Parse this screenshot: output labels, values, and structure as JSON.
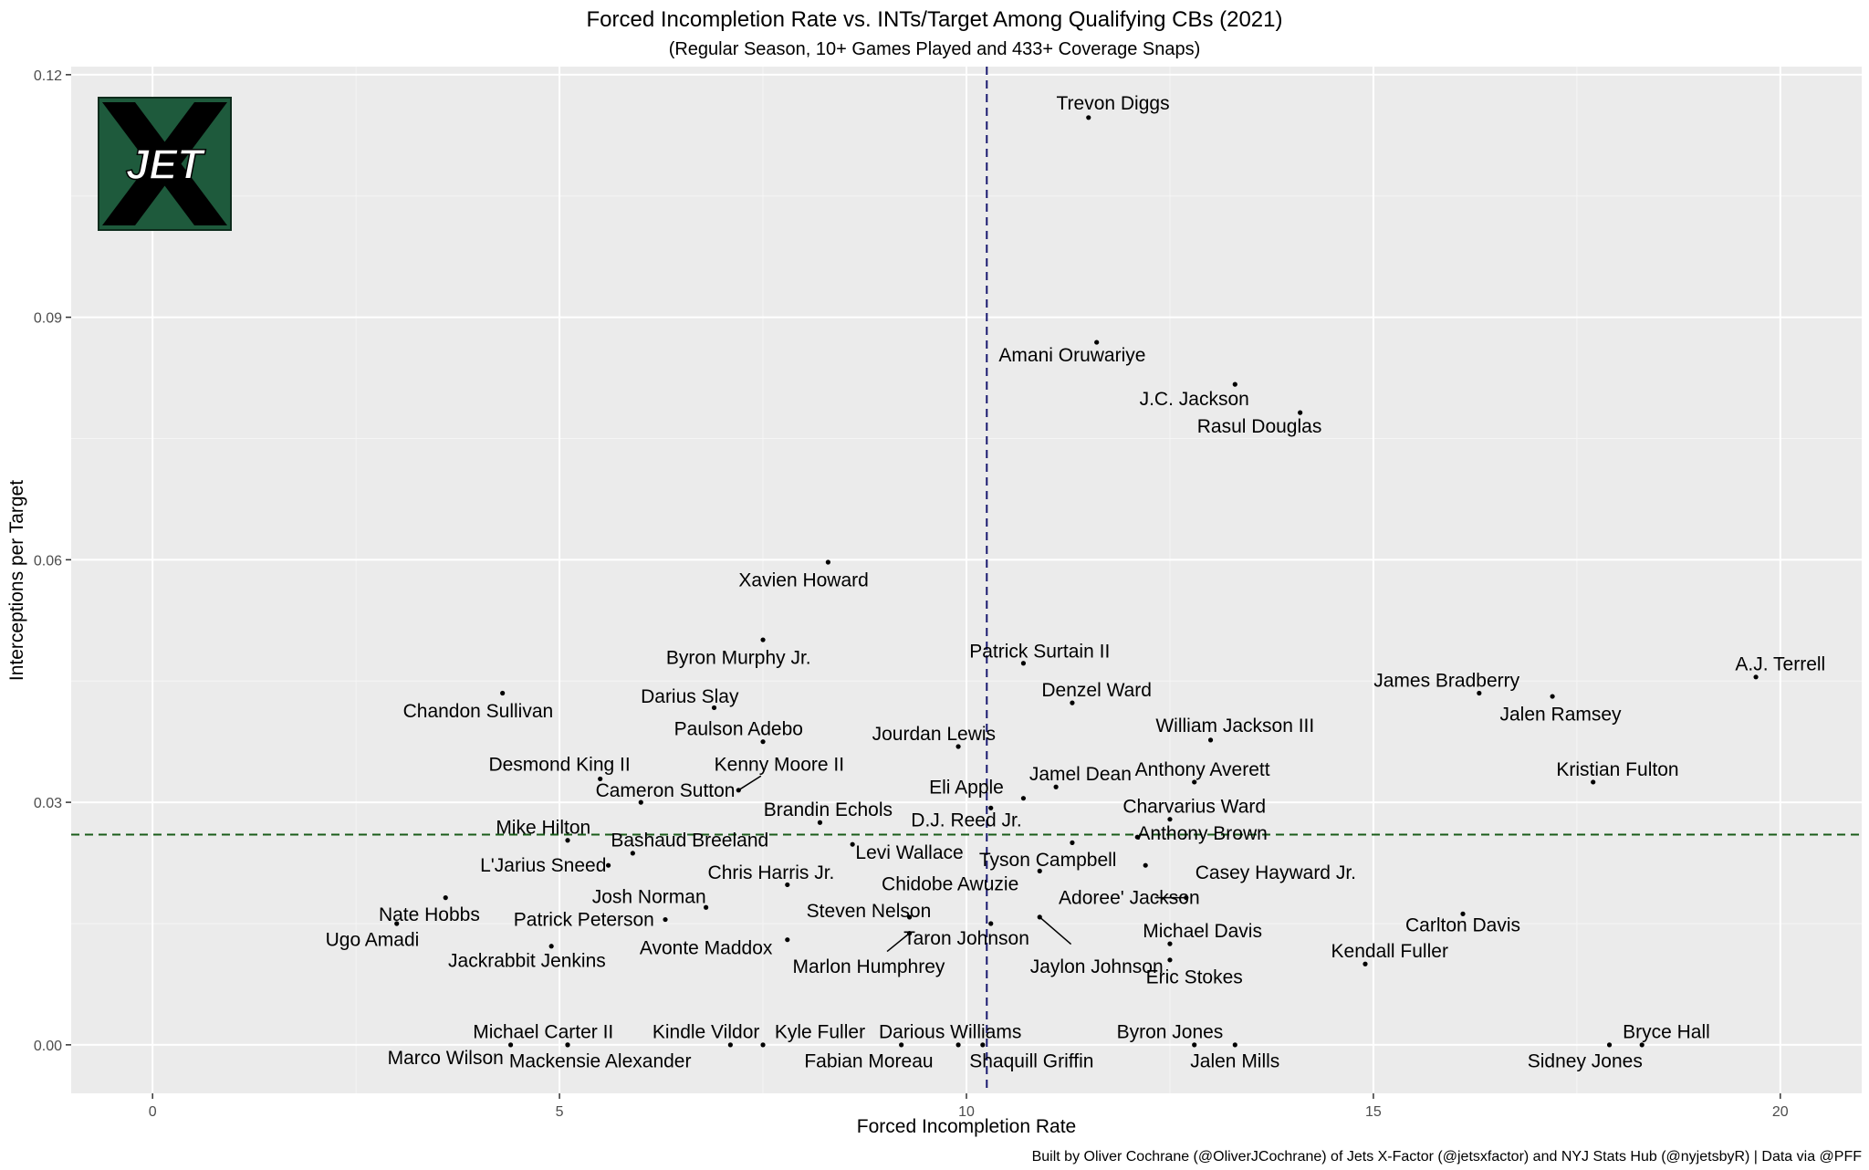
{
  "chart_data": {
    "type": "scatter",
    "title": "Forced Incompletion Rate vs. INTs/Target Among Qualifying CBs (2021)",
    "subtitle": "(Regular Season, 10+ Games Played and 433+ Coverage Snaps)",
    "xlabel": "Forced Incompletion Rate",
    "ylabel": "Interceptions per Target",
    "caption": "Built by Oliver Cochrane (@OliverJCochrane) of Jets X-Factor (@jetsxfactor) and NYJ Stats Hub (@nyjetsbyR) | Data via @PFF",
    "xlim": [
      -1,
      21
    ],
    "ylim": [
      -0.006,
      0.121
    ],
    "x_ticks": [
      0,
      5,
      10,
      15,
      20
    ],
    "y_ticks": [
      0.0,
      0.03,
      0.06,
      0.09,
      0.12
    ],
    "x_tick_labels": [
      "0",
      "5",
      "10",
      "15",
      "20"
    ],
    "y_tick_labels": [
      "0.00",
      "0.03",
      "0.06",
      "0.09",
      "0.12"
    ],
    "grid": true,
    "reference_lines": [
      {
        "orientation": "vertical",
        "value": 10.25,
        "color": "#191970",
        "style": "dashed"
      },
      {
        "orientation": "horizontal",
        "value": 0.026,
        "color": "#1a5c1a",
        "style": "dashed"
      }
    ],
    "logo_text": "JET",
    "points": [
      {
        "name": "Trevon Diggs",
        "x": 11.5,
        "y": 0.1147,
        "label_x": 11.8,
        "label_y": 0.1165
      },
      {
        "name": "Amani Oruwariye",
        "x": 11.6,
        "y": 0.0869,
        "label_x": 11.3,
        "label_y": 0.0853
      },
      {
        "name": "J.C. Jackson",
        "x": 13.3,
        "y": 0.0817,
        "label_x": 12.8,
        "label_y": 0.0799
      },
      {
        "name": "Rasul Douglas",
        "x": 14.1,
        "y": 0.0782,
        "label_x": 13.6,
        "label_y": 0.0765
      },
      {
        "name": "Xavien Howard",
        "x": 8.3,
        "y": 0.0597,
        "label_x": 8.0,
        "label_y": 0.0575
      },
      {
        "name": "Byron Murphy Jr.",
        "x": 7.5,
        "y": 0.0501,
        "label_x": 7.2,
        "label_y": 0.0479
      },
      {
        "name": "Patrick Surtain II",
        "x": 10.7,
        "y": 0.0472,
        "label_x": 10.9,
        "label_y": 0.0487
      },
      {
        "name": "A.J. Terrell",
        "x": 19.7,
        "y": 0.0455,
        "label_x": 20.0,
        "label_y": 0.0471
      },
      {
        "name": "James Bradberry",
        "x": 16.3,
        "y": 0.0435,
        "label_x": 15.9,
        "label_y": 0.0451
      },
      {
        "name": "Jalen Ramsey",
        "x": 17.2,
        "y": 0.0431,
        "label_x": 17.3,
        "label_y": 0.0409
      },
      {
        "name": "Chandon Sullivan",
        "x": 4.3,
        "y": 0.0435,
        "label_x": 4.0,
        "label_y": 0.0413
      },
      {
        "name": "Darius Slay",
        "x": 6.9,
        "y": 0.0417,
        "label_x": 6.6,
        "label_y": 0.0431
      },
      {
        "name": "Denzel Ward",
        "x": 11.3,
        "y": 0.0423,
        "label_x": 11.6,
        "label_y": 0.0439
      },
      {
        "name": "Paulson Adebo",
        "x": 7.5,
        "y": 0.0375,
        "label_x": 7.2,
        "label_y": 0.0391
      },
      {
        "name": "William Jackson III",
        "x": 13.0,
        "y": 0.0377,
        "label_x": 13.3,
        "label_y": 0.0395
      },
      {
        "name": "Jourdan Lewis",
        "x": 9.9,
        "y": 0.0369,
        "label_x": 9.6,
        "label_y": 0.0385
      },
      {
        "name": "Desmond King II",
        "x": 5.5,
        "y": 0.0329,
        "label_x": 5.0,
        "label_y": 0.0347
      },
      {
        "name": "Kenny Moore II",
        "x": 7.2,
        "y": 0.0315,
        "label_x": 7.7,
        "label_y": 0.0347,
        "leader": true
      },
      {
        "name": "Anthony Averett",
        "x": 12.8,
        "y": 0.0325,
        "label_x": 12.9,
        "label_y": 0.0341
      },
      {
        "name": "Kristian Fulton",
        "x": 17.7,
        "y": 0.0325,
        "label_x": 18.0,
        "label_y": 0.0341
      },
      {
        "name": "Jamel Dean",
        "x": 11.1,
        "y": 0.0319,
        "label_x": 11.4,
        "label_y": 0.0335
      },
      {
        "name": "Eli Apple",
        "x": 10.7,
        "y": 0.0305,
        "label_x": 10.0,
        "label_y": 0.0319
      },
      {
        "name": "Cameron Sutton",
        "x": 6.0,
        "y": 0.03,
        "label_x": 6.3,
        "label_y": 0.0315
      },
      {
        "name": "Charvarius Ward",
        "x": 12.5,
        "y": 0.0279,
        "label_x": 12.8,
        "label_y": 0.0295
      },
      {
        "name": "Brandin Echols",
        "x": 8.2,
        "y": 0.0275,
        "label_x": 8.3,
        "label_y": 0.0291
      },
      {
        "name": "D.J. Reed Jr.",
        "x": 10.3,
        "y": 0.0293,
        "label_x": 10.0,
        "label_y": 0.0278
      },
      {
        "name": "Anthony Brown",
        "x": 12.1,
        "y": 0.0257,
        "label_x": 12.9,
        "label_y": 0.0262
      },
      {
        "name": "Mike Hilton",
        "x": 5.1,
        "y": 0.0253,
        "label_x": 4.8,
        "label_y": 0.0269
      },
      {
        "name": "Bashaud Breeland",
        "x": 5.9,
        "y": 0.0237,
        "label_x": 6.6,
        "label_y": 0.0253
      },
      {
        "name": "Levi Wallace",
        "x": 8.6,
        "y": 0.0248,
        "label_x": 9.3,
        "label_y": 0.0238
      },
      {
        "name": "Tyson Campbell",
        "x": 11.3,
        "y": 0.025,
        "label_x": 11.0,
        "label_y": 0.0229
      },
      {
        "name": "L'Jarius Sneed",
        "x": 5.6,
        "y": 0.0222,
        "label_x": 4.8,
        "label_y": 0.0222
      },
      {
        "name": "Chris Harris Jr.",
        "x": 7.8,
        "y": 0.0198,
        "label_x": 7.6,
        "label_y": 0.0213
      },
      {
        "name": "Casey Hayward Jr.",
        "x": 12.2,
        "y": 0.0222,
        "label_x": 13.8,
        "label_y": 0.0213
      },
      {
        "name": "Chidobe Awuzie",
        "x": 10.9,
        "y": 0.0215,
        "label_x": 9.8,
        "label_y": 0.0199
      },
      {
        "name": "Adoree' Jackson",
        "x": 12.7,
        "y": 0.0182,
        "label_x": 12.0,
        "label_y": 0.0182,
        "leader": true
      },
      {
        "name": "Josh Norman",
        "x": 6.8,
        "y": 0.017,
        "label_x": 6.1,
        "label_y": 0.0183
      },
      {
        "name": "Nate Hobbs",
        "x": 3.6,
        "y": 0.0182,
        "label_x": 3.4,
        "label_y": 0.0161
      },
      {
        "name": "Steven Nelson",
        "x": 9.3,
        "y": 0.0158,
        "label_x": 8.8,
        "label_y": 0.0166
      },
      {
        "name": "Carlton Davis",
        "x": 16.1,
        "y": 0.0162,
        "label_x": 16.1,
        "label_y": 0.0148
      },
      {
        "name": "Patrick Peterson",
        "x": 6.3,
        "y": 0.0155,
        "label_x": 5.3,
        "label_y": 0.0155
      },
      {
        "name": "Jaylon Johnson",
        "x": 10.9,
        "y": 0.0158,
        "label_x": 11.6,
        "label_y": 0.0097,
        "leader": true
      },
      {
        "name": "Taron Johnson",
        "x": 10.3,
        "y": 0.015,
        "label_x": 10.0,
        "label_y": 0.0132
      },
      {
        "name": "Michael Davis",
        "x": 12.5,
        "y": 0.0125,
        "label_x": 12.9,
        "label_y": 0.0141
      },
      {
        "name": "Ugo Amadi",
        "x": 3.0,
        "y": 0.015,
        "label_x": 2.7,
        "label_y": 0.013
      },
      {
        "name": "Avonte Maddox",
        "x": 7.8,
        "y": 0.013,
        "label_x": 6.8,
        "label_y": 0.012
      },
      {
        "name": "Marlon Humphrey",
        "x": 9.3,
        "y": 0.0138,
        "label_x": 8.8,
        "label_y": 0.0097,
        "leader": true
      },
      {
        "name": "Jackrabbit Jenkins",
        "x": 4.9,
        "y": 0.0122,
        "label_x": 4.6,
        "label_y": 0.0104
      },
      {
        "name": "Kendall Fuller",
        "x": 14.9,
        "y": 0.01,
        "label_x": 15.2,
        "label_y": 0.0116
      },
      {
        "name": "Eric Stokes",
        "x": 12.5,
        "y": 0.0105,
        "label_x": 12.8,
        "label_y": 0.0084
      },
      {
        "name": "Michael Carter II",
        "x": 5.1,
        "y": 0.0,
        "label_x": 4.8,
        "label_y": 0.0016
      },
      {
        "name": "Kindle Vildor",
        "x": 7.1,
        "y": 0.0,
        "label_x": 6.8,
        "label_y": 0.0016
      },
      {
        "name": "Kyle Fuller",
        "x": 7.5,
        "y": 0.0,
        "label_x": 8.2,
        "label_y": 0.0016
      },
      {
        "name": "Darious Williams",
        "x": 9.9,
        "y": 0.0,
        "label_x": 9.8,
        "label_y": 0.0016
      },
      {
        "name": "Byron Jones",
        "x": 12.8,
        "y": 0.0,
        "label_x": 12.5,
        "label_y": 0.0016
      },
      {
        "name": "Bryce Hall",
        "x": 18.3,
        "y": 0.0,
        "label_x": 18.6,
        "label_y": 0.0016
      },
      {
        "name": "Marco Wilson",
        "x": 4.4,
        "y": 0.0,
        "label_x": 3.6,
        "label_y": -0.0016
      },
      {
        "name": "Mackensie Alexander",
        "x": 5.1,
        "y": 0.0,
        "label_x": 5.5,
        "label_y": -0.002
      },
      {
        "name": "Fabian Moreau",
        "x": 9.2,
        "y": 0.0,
        "label_x": 8.8,
        "label_y": -0.002
      },
      {
        "name": "Shaquill Griffin",
        "x": 10.2,
        "y": 0.0,
        "label_x": 10.8,
        "label_y": -0.002
      },
      {
        "name": "Jalen Mills",
        "x": 13.3,
        "y": 0.0,
        "label_x": 13.3,
        "label_y": -0.002
      },
      {
        "name": "Sidney Jones",
        "x": 17.9,
        "y": 0.0,
        "label_x": 17.6,
        "label_y": -0.002
      }
    ]
  }
}
